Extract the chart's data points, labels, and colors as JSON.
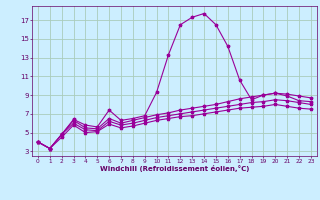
{
  "bg_color": "#cceeff",
  "grid_color": "#aaccbb",
  "line_color": "#990099",
  "xlabel": "Windchill (Refroidissement éolien,°C)",
  "xlabel_color": "#660066",
  "tick_color": "#660066",
  "xlim": [
    -0.5,
    23.5
  ],
  "ylim": [
    2.5,
    18.5
  ],
  "yticks": [
    3,
    5,
    7,
    9,
    11,
    13,
    15,
    17
  ],
  "xticks": [
    0,
    1,
    2,
    3,
    4,
    5,
    6,
    7,
    8,
    9,
    10,
    11,
    12,
    13,
    14,
    15,
    16,
    17,
    18,
    19,
    20,
    21,
    22,
    23
  ],
  "series": [
    {
      "x": [
        0,
        1,
        2,
        3,
        4,
        5,
        6,
        7,
        8,
        9,
        10,
        11,
        12,
        13,
        14,
        15,
        16,
        17,
        18,
        19,
        20,
        21,
        22,
        23
      ],
      "y": [
        4.0,
        3.3,
        4.8,
        6.4,
        5.8,
        5.6,
        7.4,
        6.3,
        6.5,
        6.8,
        9.3,
        13.3,
        16.5,
        17.3,
        17.7,
        16.5,
        14.2,
        10.6,
        8.5,
        9.0,
        9.2,
        8.9,
        8.4,
        8.3
      ]
    },
    {
      "x": [
        0,
        1,
        2,
        3,
        4,
        5,
        6,
        7,
        8,
        9,
        10,
        11,
        12,
        13,
        14,
        15,
        16,
        17,
        18,
        19,
        20,
        21,
        22,
        23
      ],
      "y": [
        4.0,
        3.3,
        4.8,
        6.3,
        5.5,
        5.4,
        6.5,
        6.0,
        6.3,
        6.6,
        6.9,
        7.1,
        7.4,
        7.6,
        7.8,
        8.0,
        8.3,
        8.6,
        8.8,
        9.0,
        9.2,
        9.1,
        8.9,
        8.7
      ]
    },
    {
      "x": [
        0,
        1,
        2,
        3,
        4,
        5,
        6,
        7,
        8,
        9,
        10,
        11,
        12,
        13,
        14,
        15,
        16,
        17,
        18,
        19,
        20,
        21,
        22,
        23
      ],
      "y": [
        4.0,
        3.3,
        4.8,
        6.0,
        5.3,
        5.2,
        6.2,
        5.8,
        6.0,
        6.3,
        6.6,
        6.8,
        7.0,
        7.2,
        7.4,
        7.6,
        7.8,
        8.0,
        8.2,
        8.3,
        8.5,
        8.4,
        8.2,
        8.0
      ]
    },
    {
      "x": [
        0,
        1,
        2,
        3,
        4,
        5,
        6,
        7,
        8,
        9,
        10,
        11,
        12,
        13,
        14,
        15,
        16,
        17,
        18,
        19,
        20,
        21,
        22,
        23
      ],
      "y": [
        4.0,
        3.3,
        4.5,
        5.8,
        5.0,
        5.1,
        5.9,
        5.5,
        5.7,
        6.0,
        6.3,
        6.5,
        6.7,
        6.8,
        7.0,
        7.2,
        7.4,
        7.6,
        7.7,
        7.8,
        8.0,
        7.8,
        7.6,
        7.5
      ]
    }
  ]
}
